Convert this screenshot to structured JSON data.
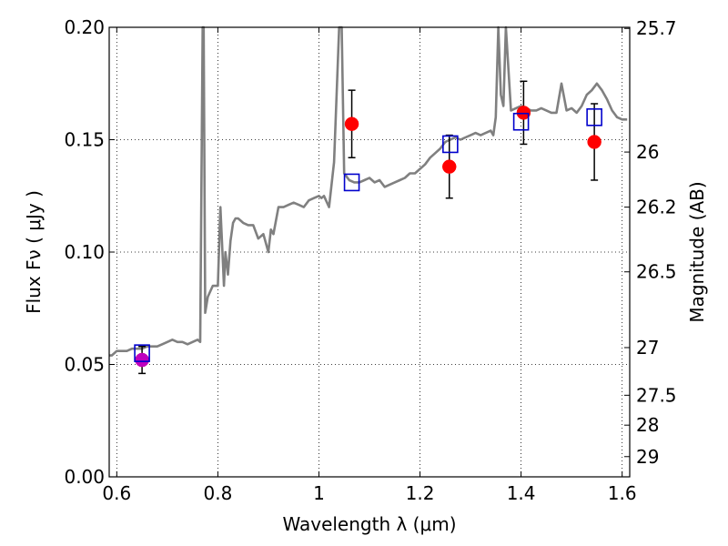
{
  "chart_data": {
    "type": "line",
    "title": "",
    "xlabel": "Wavelength  λ (μm)",
    "ylabel": "Flux  Fν  ( μJy )",
    "y2label": "Magnitude (AB)",
    "xlim": [
      0.585,
      1.615
    ],
    "ylim": [
      0.0,
      0.2
    ],
    "grid": true,
    "x_ticks": [
      0.6,
      0.8,
      1.0,
      1.2,
      1.4,
      1.6
    ],
    "x_tick_labels": [
      "0.6",
      "0.8",
      "1",
      "1.2",
      "1.4",
      "1.6"
    ],
    "y_ticks": [
      0.0,
      0.05,
      0.1,
      0.15,
      0.2
    ],
    "y_tick_labels": [
      "0.00",
      "0.05",
      "0.10",
      "0.15",
      "0.20"
    ],
    "mag_ticks": [
      {
        "flux": 0.1995,
        "label": "25.7"
      },
      {
        "flux": 0.1445,
        "label": "26"
      },
      {
        "flux": 0.12,
        "label": "26.2"
      },
      {
        "flux": 0.0912,
        "label": "26.5"
      },
      {
        "flux": 0.0575,
        "label": "27"
      },
      {
        "flux": 0.0363,
        "label": "27.5"
      },
      {
        "flux": 0.023,
        "label": "28"
      },
      {
        "flux": 0.009,
        "label": "29"
      }
    ],
    "spectrum": {
      "color": "#808080",
      "x": [
        0.585,
        0.59,
        0.6,
        0.61,
        0.62,
        0.63,
        0.64,
        0.65,
        0.66,
        0.67,
        0.68,
        0.69,
        0.7,
        0.71,
        0.72,
        0.73,
        0.74,
        0.75,
        0.76,
        0.765,
        0.77,
        0.772,
        0.775,
        0.78,
        0.79,
        0.8,
        0.805,
        0.81,
        0.812,
        0.815,
        0.82,
        0.825,
        0.83,
        0.835,
        0.84,
        0.845,
        0.85,
        0.86,
        0.87,
        0.88,
        0.89,
        0.9,
        0.905,
        0.91,
        0.92,
        0.93,
        0.94,
        0.95,
        0.96,
        0.97,
        0.98,
        0.99,
        1.0,
        1.005,
        1.01,
        1.02,
        1.03,
        1.035,
        1.04,
        1.045,
        1.05,
        1.06,
        1.07,
        1.08,
        1.09,
        1.1,
        1.11,
        1.12,
        1.13,
        1.14,
        1.15,
        1.16,
        1.17,
        1.18,
        1.19,
        1.2,
        1.21,
        1.22,
        1.23,
        1.24,
        1.25,
        1.26,
        1.27,
        1.28,
        1.29,
        1.3,
        1.31,
        1.32,
        1.33,
        1.34,
        1.345,
        1.35,
        1.355,
        1.36,
        1.365,
        1.37,
        1.38,
        1.39,
        1.4,
        1.41,
        1.42,
        1.43,
        1.44,
        1.45,
        1.46,
        1.47,
        1.48,
        1.49,
        1.5,
        1.51,
        1.52,
        1.53,
        1.54,
        1.55,
        1.56,
        1.57,
        1.58,
        1.59,
        1.6,
        1.61
      ],
      "y": [
        0.054,
        0.054,
        0.056,
        0.056,
        0.056,
        0.057,
        0.057,
        0.057,
        0.058,
        0.058,
        0.058,
        0.059,
        0.06,
        0.061,
        0.06,
        0.06,
        0.059,
        0.06,
        0.061,
        0.06,
        0.2,
        0.2,
        0.073,
        0.08,
        0.085,
        0.085,
        0.12,
        0.095,
        0.085,
        0.1,
        0.09,
        0.105,
        0.113,
        0.115,
        0.115,
        0.114,
        0.113,
        0.112,
        0.112,
        0.106,
        0.108,
        0.1,
        0.11,
        0.108,
        0.12,
        0.12,
        0.121,
        0.122,
        0.121,
        0.12,
        0.123,
        0.124,
        0.125,
        0.124,
        0.125,
        0.12,
        0.14,
        0.17,
        0.2,
        0.2,
        0.135,
        0.132,
        0.131,
        0.131,
        0.132,
        0.133,
        0.131,
        0.132,
        0.129,
        0.13,
        0.131,
        0.132,
        0.133,
        0.135,
        0.135,
        0.137,
        0.139,
        0.142,
        0.144,
        0.146,
        0.149,
        0.15,
        0.151,
        0.15,
        0.151,
        0.152,
        0.153,
        0.152,
        0.153,
        0.154,
        0.152,
        0.16,
        0.2,
        0.17,
        0.165,
        0.2,
        0.163,
        0.164,
        0.165,
        0.164,
        0.163,
        0.163,
        0.164,
        0.163,
        0.162,
        0.162,
        0.175,
        0.163,
        0.164,
        0.162,
        0.165,
        0.17,
        0.172,
        0.175,
        0.172,
        0.168,
        0.163,
        0.16,
        0.159,
        0.159
      ]
    },
    "series": [
      {
        "marker": "circle",
        "color": "#ff0000",
        "x": [
          0.65,
          1.065,
          1.258,
          1.405,
          1.545
        ],
        "y": [
          0.052,
          0.157,
          0.138,
          0.162,
          0.149
        ],
        "err": [
          0.006,
          0.015,
          0.014,
          0.014,
          0.017
        ]
      },
      {
        "marker": "circle",
        "color": "#bf00bf",
        "x": [
          0.65
        ],
        "y": [
          0.052
        ],
        "err": [
          0.0
        ]
      },
      {
        "marker": "open-square",
        "color": "#0000cc",
        "x": [
          0.65,
          1.065,
          1.26,
          1.4,
          1.545
        ],
        "y": [
          0.055,
          0.131,
          0.148,
          0.158,
          0.16
        ]
      }
    ]
  }
}
